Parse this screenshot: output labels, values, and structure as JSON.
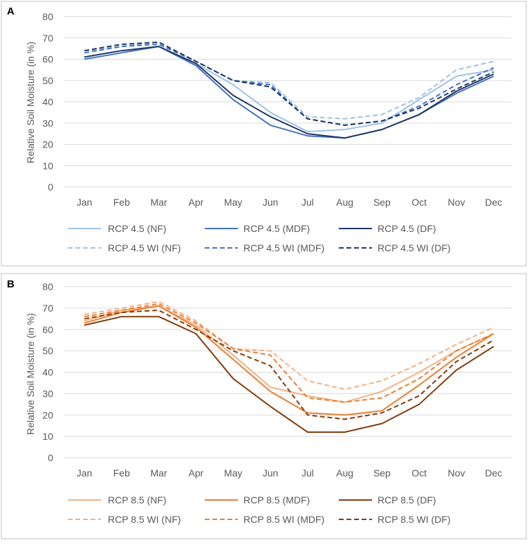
{
  "chart_data": [
    {
      "panel_label": "A",
      "type": "line",
      "title": "",
      "xlabel": "",
      "ylabel": "Relative Soil Moisture (in %)",
      "ylim": [
        0,
        80
      ],
      "yticks": [
        0,
        10,
        20,
        30,
        40,
        50,
        60,
        70,
        80
      ],
      "grid": true,
      "legend_position": "bottom",
      "categories": [
        "Jan",
        "Feb",
        "Mar",
        "Apr",
        "May",
        "Jun",
        "Jul",
        "Aug",
        "Sep",
        "Oct",
        "Nov",
        "Dec"
      ],
      "series": [
        {
          "name": "RCP 4.5 (NF)",
          "color": "#9dc3e6",
          "dash": "solid",
          "values": [
            61,
            64,
            66,
            58,
            48,
            35,
            26,
            27,
            30,
            41,
            52,
            55
          ]
        },
        {
          "name": "RCP 4.5 (MDF)",
          "color": "#4472c4",
          "dash": "solid",
          "values": [
            60,
            63,
            66,
            57,
            41,
            29,
            24,
            23,
            27,
            34,
            44,
            52
          ]
        },
        {
          "name": "RCP 4.5 (DF)",
          "color": "#1f3864",
          "dash": "solid",
          "values": [
            61,
            64,
            66,
            58,
            43,
            33,
            25,
            23,
            27,
            34,
            45,
            53
          ]
        },
        {
          "name": "RCP 4.5 WI (NF)",
          "color": "#9dc3e6",
          "dash": "dash",
          "values": [
            64,
            66,
            68,
            59,
            50,
            49,
            33,
            32,
            34,
            42,
            55,
            59
          ]
        },
        {
          "name": "RCP 4.5 WI (MDF)",
          "color": "#4472c4",
          "dash": "dash",
          "values": [
            63,
            66,
            67,
            59,
            50,
            48,
            32,
            29,
            31,
            38,
            48,
            56
          ]
        },
        {
          "name": "RCP 4.5 WI (DF)",
          "color": "#1f3864",
          "dash": "dash",
          "values": [
            64,
            67,
            68,
            59,
            50,
            47,
            32,
            29,
            31,
            37,
            46,
            54
          ]
        }
      ]
    },
    {
      "panel_label": "B",
      "type": "line",
      "title": "",
      "xlabel": "",
      "ylabel": "Relative Soil Moisture (in %)",
      "ylim": [
        0,
        80
      ],
      "yticks": [
        0,
        10,
        20,
        30,
        40,
        50,
        60,
        70,
        80
      ],
      "grid": true,
      "legend_position": "bottom",
      "categories": [
        "Jan",
        "Feb",
        "Mar",
        "Apr",
        "May",
        "Jun",
        "Jul",
        "Aug",
        "Sep",
        "Oct",
        "Nov",
        "Dec"
      ],
      "series": [
        {
          "name": "RCP 8.5 (NF)",
          "color": "#f4b183",
          "dash": "solid",
          "values": [
            64,
            69,
            71,
            62,
            48,
            33,
            29,
            26,
            31,
            40,
            50,
            58
          ]
        },
        {
          "name": "RCP 8.5 (MDF)",
          "color": "#ed7d31",
          "dash": "solid",
          "values": [
            63,
            68,
            71,
            61,
            46,
            31,
            21,
            20,
            22,
            34,
            47,
            58
          ]
        },
        {
          "name": "RCP 8.5 (DF)",
          "color": "#843c0c",
          "dash": "solid",
          "values": [
            62,
            66,
            66,
            58,
            37,
            24,
            12,
            12,
            16,
            25,
            41,
            52
          ]
        },
        {
          "name": "RCP 8.5 WI (NF)",
          "color": "#f4b183",
          "dash": "dash",
          "values": [
            67,
            70,
            73,
            64,
            51,
            50,
            36,
            32,
            36,
            44,
            53,
            61
          ]
        },
        {
          "name": "RCP 8.5 WI (MDF)",
          "color": "#ed7d31",
          "dash": "dash",
          "values": [
            66,
            69,
            72,
            63,
            51,
            48,
            28,
            26,
            28,
            37,
            50,
            58
          ]
        },
        {
          "name": "RCP 8.5 WI (DF)",
          "color": "#843c0c",
          "dash": "dash",
          "values": [
            65,
            68,
            69,
            60,
            50,
            43,
            20,
            18,
            21,
            29,
            45,
            55
          ]
        }
      ]
    }
  ]
}
